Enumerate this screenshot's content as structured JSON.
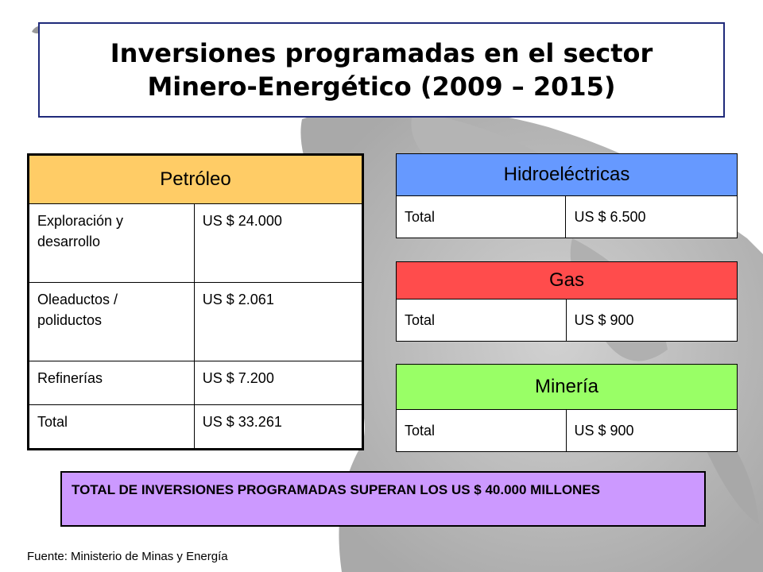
{
  "title": {
    "line1": "Inversiones programadas en el sector",
    "line2": "Minero-Energético (2009 – 2015)"
  },
  "colors": {
    "petroleo_header": "#ffcc66",
    "hidro_header": "#6699ff",
    "gas_header": "#ff4c4c",
    "mineria_header": "#99ff66",
    "total_box": "#cc99ff",
    "title_border": "#1f2a7a"
  },
  "petroleo": {
    "header": "Petróleo",
    "rows": [
      {
        "label": "Exploración y desarrollo",
        "value": "US $ 24.000"
      },
      {
        "label": "Oleaductos / poliductos",
        "value": "US $ 2.061"
      },
      {
        "label": "Refinerías",
        "value": "US $ 7.200"
      },
      {
        "label": "Total",
        "value": "US $ 33.261"
      }
    ]
  },
  "hidroelectricas": {
    "header": "Hidroeléctricas",
    "rows": [
      {
        "label": "Total",
        "value": "US $ 6.500"
      }
    ]
  },
  "gas": {
    "header": "Gas",
    "rows": [
      {
        "label": "Total",
        "value": "US $ 900"
      }
    ]
  },
  "mineria": {
    "header": "Minería",
    "rows": [
      {
        "label": "Total",
        "value": "US $ 900"
      }
    ]
  },
  "total_note": "TOTAL DE INVERSIONES PROGRAMADAS SUPERAN LOS US $ 40.000 MILLONES",
  "source": "Fuente: Ministerio de Minas y Energía",
  "background_icon": "globe-icon"
}
